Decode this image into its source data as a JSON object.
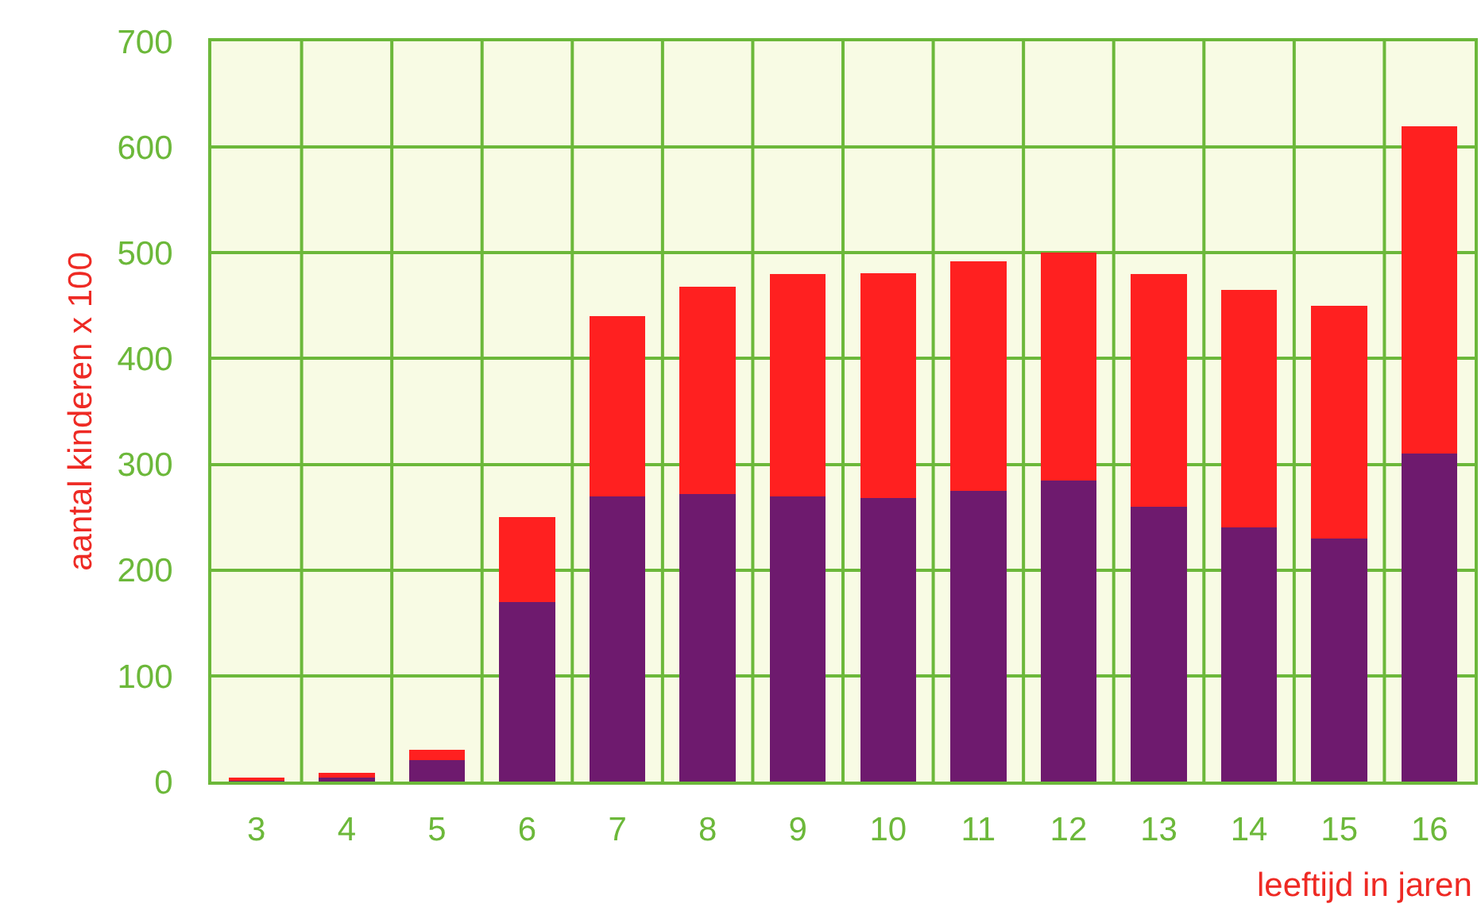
{
  "chart_data": {
    "type": "bar",
    "stacked": true,
    "xlabel": "leeftijd in jaren",
    "ylabel": "aantal kinderen x 100",
    "categories": [
      "3",
      "4",
      "5",
      "6",
      "7",
      "8",
      "9",
      "10",
      "11",
      "12",
      "13",
      "14",
      "15",
      "16"
    ],
    "series": [
      {
        "color": "#6e1a6e",
        "values": [
          1,
          4,
          20,
          170,
          270,
          272,
          270,
          268,
          275,
          285,
          260,
          240,
          230,
          310
        ]
      },
      {
        "color": "#ff2020",
        "values": [
          3,
          4,
          10,
          80,
          170,
          196,
          210,
          213,
          217,
          215,
          220,
          225,
          220,
          310
        ]
      }
    ],
    "ylim": [
      0,
      700
    ],
    "yticks": [
      0,
      100,
      200,
      300,
      400,
      500,
      600,
      700
    ],
    "grid": true
  }
}
